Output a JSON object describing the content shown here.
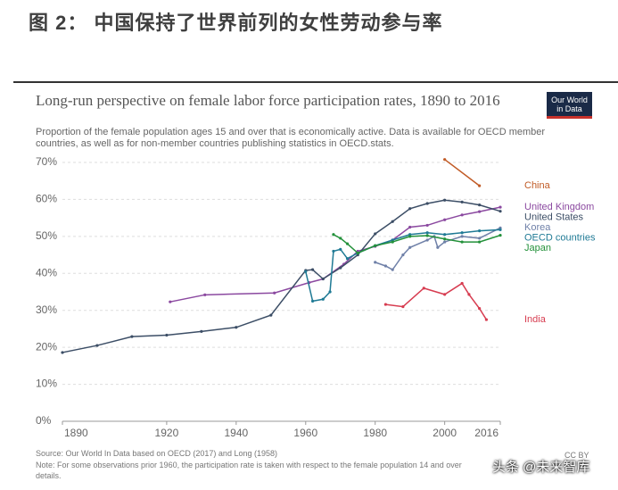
{
  "header": {
    "title": "图 2： 中国保持了世界前列的女性劳动参与率"
  },
  "logo": [
    "Our World",
    "in Data"
  ],
  "chart_data": {
    "type": "line",
    "title": "Long-run perspective on female labor force participation rates, 1890 to 2016",
    "subtitle": "Proportion of the female population ages 15 and over that is economically active. Data is available for OECD member countries, as well as for non-member countries publishing statistics in OECD.stats.",
    "xlim": [
      1890,
      2016
    ],
    "ylim": [
      0,
      70
    ],
    "xticks": [
      1890,
      1920,
      1940,
      1960,
      1980,
      2000,
      2016
    ],
    "yticks": [
      {
        "value": 0,
        "label": "0%"
      },
      {
        "value": 10,
        "label": "10%"
      },
      {
        "value": 20,
        "label": "20%"
      },
      {
        "value": 30,
        "label": "30%"
      },
      {
        "value": 40,
        "label": "40%"
      },
      {
        "value": 50,
        "label": "50%"
      },
      {
        "value": 60,
        "label": "60%"
      },
      {
        "value": 70,
        "label": "70%"
      }
    ],
    "grid": true,
    "series": [
      {
        "name": "China",
        "color": "#c15b26",
        "x": [
          2000,
          2010
        ],
        "values": [
          70.8,
          63.7
        ]
      },
      {
        "name": "United Kingdom",
        "color": "#8b49a0",
        "x": [
          1921,
          1931,
          1951,
          1961,
          1965,
          1971,
          1975,
          1980,
          1985,
          1990,
          1995,
          2000,
          2005,
          2010,
          2016
        ],
        "values": [
          32.3,
          34.2,
          34.7,
          37.5,
          38.5,
          42.5,
          46,
          47.3,
          49,
          52.5,
          53,
          54.5,
          55.8,
          56.7,
          57.9
        ]
      },
      {
        "name": "United States",
        "color": "#3c4e66",
        "x": [
          1890,
          1900,
          1910,
          1920,
          1930,
          1940,
          1950,
          1960,
          1962,
          1965,
          1970,
          1975,
          1980,
          1985,
          1990,
          1995,
          2000,
          2005,
          2010,
          2016
        ],
        "values": [
          18.6,
          20.5,
          22.9,
          23.3,
          24.3,
          25.4,
          28.7,
          40.8,
          41,
          38.5,
          41.5,
          45,
          50.7,
          54,
          57.5,
          58.9,
          59.8,
          59.3,
          58.5,
          56.8
        ]
      },
      {
        "name": "Korea",
        "color": "#6f80a8",
        "x": [
          1980,
          1983,
          1985,
          1988,
          1990,
          1995,
          1997,
          1998,
          2000,
          2005,
          2010,
          2016
        ],
        "values": [
          43,
          42,
          41,
          45,
          47,
          49,
          50,
          47,
          48.5,
          50,
          49.5,
          52.3
        ]
      },
      {
        "name": "OECD countries",
        "color": "#1f7a95",
        "x": [
          1960,
          1962,
          1965,
          1967,
          1968,
          1970,
          1972,
          1975,
          1980,
          1985,
          1990,
          1995,
          2000,
          2005,
          2010,
          2016
        ],
        "values": [
          40.5,
          32.5,
          33,
          35,
          46,
          46.5,
          44,
          45.5,
          47.5,
          49,
          50.5,
          51,
          50.5,
          51,
          51.5,
          51.8
        ]
      },
      {
        "name": "Japan",
        "color": "#23913a",
        "x": [
          1968,
          1970,
          1972,
          1975,
          1980,
          1985,
          1990,
          1995,
          2000,
          2005,
          2010,
          2016
        ],
        "values": [
          50.5,
          49.5,
          48,
          45.5,
          47.5,
          48.5,
          50,
          50.2,
          49.3,
          48.5,
          48.5,
          50.3
        ]
      },
      {
        "name": "India",
        "color": "#d73c50",
        "x": [
          1983,
          1988,
          1994,
          2000,
          2005,
          2007,
          2010,
          2012
        ],
        "values": [
          31.6,
          31,
          36,
          34.3,
          37.3,
          34.3,
          30.5,
          27.5
        ]
      }
    ]
  },
  "footer": {
    "source": "Source: Our World In Data based on OECD (2017) and Long (1958)",
    "note": [
      "Note: For some observations prior 1960, the participation rate is taken with respect to the female population 14 and over",
      "details."
    ],
    "license": "CC BY"
  },
  "watermark": "头条 @未来智库"
}
